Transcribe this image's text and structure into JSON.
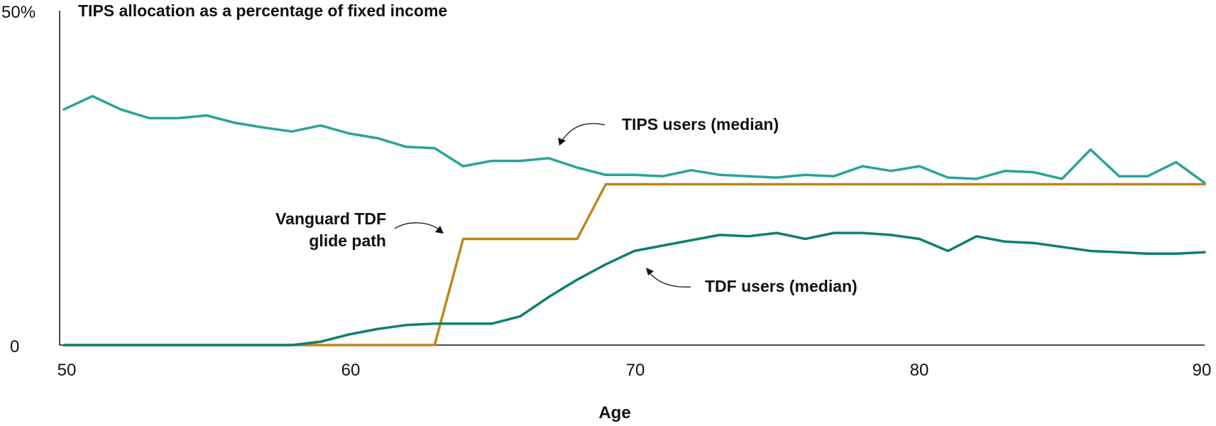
{
  "chart_data": {
    "type": "line",
    "title": "TIPS allocation as a percentage of fixed income",
    "xlabel": "Age",
    "ylabel": "",
    "xlim": [
      50,
      90
    ],
    "ylim": [
      0,
      50
    ],
    "x_ticks": [
      "50",
      "60",
      "70",
      "80",
      "90"
    ],
    "y_ticks": [
      "0",
      "50%"
    ],
    "grid": false,
    "x": [
      50,
      51,
      52,
      53,
      54,
      55,
      56,
      57,
      58,
      59,
      60,
      61,
      62,
      63,
      64,
      65,
      66,
      67,
      68,
      69,
      70,
      71,
      72,
      73,
      74,
      75,
      76,
      77,
      78,
      79,
      80,
      81,
      82,
      83,
      84,
      85,
      86,
      87,
      88,
      89,
      90
    ],
    "series": [
      {
        "name": "TIPS users (median)",
        "color": "#2aa39a",
        "values": [
          35.3,
          37.3,
          35.3,
          34.0,
          34.0,
          34.4,
          33.3,
          32.6,
          32.0,
          32.9,
          31.7,
          31.0,
          29.7,
          29.5,
          26.8,
          27.6,
          27.6,
          28.0,
          26.6,
          25.5,
          25.5,
          25.3,
          26.2,
          25.5,
          25.3,
          25.1,
          25.5,
          25.3,
          26.8,
          26.1,
          26.8,
          25.1,
          24.9,
          26.1,
          25.9,
          24.9,
          29.3,
          25.3,
          25.3,
          27.4,
          24.3
        ]
      },
      {
        "name": "Vanguard TDF glide path",
        "color": "#c0861c",
        "values": [
          0,
          0,
          0,
          0,
          0,
          0,
          0,
          0,
          0,
          0,
          0,
          0,
          0,
          0,
          15.9,
          15.9,
          15.9,
          15.9,
          15.9,
          24.1,
          24.1,
          24.1,
          24.1,
          24.1,
          24.1,
          24.1,
          24.1,
          24.1,
          24.1,
          24.1,
          24.1,
          24.1,
          24.1,
          24.1,
          24.1,
          24.1,
          24.1,
          24.1,
          24.1,
          24.1,
          24.1
        ]
      },
      {
        "name": "TDF users (median)",
        "color": "#0e7f6f",
        "values": [
          0,
          0,
          0,
          0,
          0,
          0,
          0,
          0,
          0,
          0.5,
          1.6,
          2.4,
          3.0,
          3.2,
          3.2,
          3.2,
          4.3,
          7.2,
          9.8,
          12.1,
          14.1,
          14.9,
          15.7,
          16.5,
          16.3,
          16.8,
          15.9,
          16.8,
          16.8,
          16.5,
          15.9,
          14.1,
          16.3,
          15.5,
          15.3,
          14.7,
          14.1,
          13.9,
          13.7,
          13.7,
          13.9
        ]
      }
    ],
    "annotations": [
      {
        "text_lines": [
          "TIPS users (median)"
        ],
        "series": "TIPS users (median)"
      },
      {
        "text_lines": [
          "Vanguard TDF",
          "glide path"
        ],
        "series": "Vanguard TDF glide path"
      },
      {
        "text_lines": [
          "TDF users (median)"
        ],
        "series": "TDF users (median)"
      }
    ]
  }
}
